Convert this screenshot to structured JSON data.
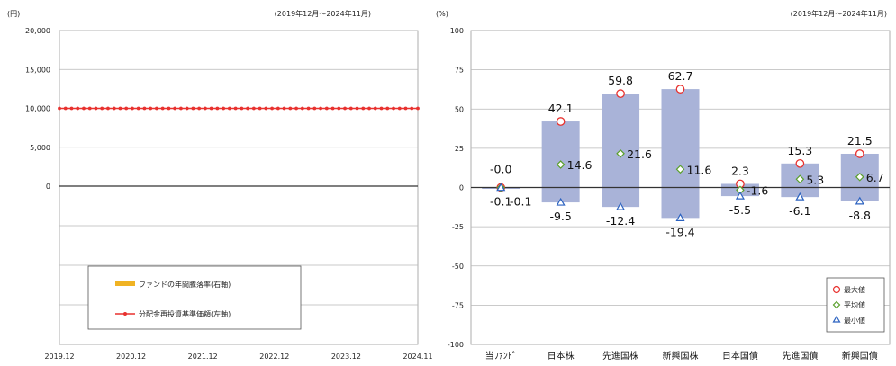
{
  "chart_data": [
    {
      "type": "line",
      "unit_label": "(円)",
      "period": "(2019年12月～2024年11月)",
      "x_tick_labels": [
        "2019.12",
        "2020.12",
        "2021.12",
        "2022.12",
        "2023.12",
        "2024.11"
      ],
      "y_ticks": [
        "20,000",
        "15,000",
        "10,000",
        "5,000",
        "0"
      ],
      "ylim": [
        0,
        20000
      ],
      "grid": true,
      "legend_position": "bottom-left",
      "legend": [
        {
          "label": "ファンドの年間騰落率(右軸)",
          "color": "#f0b323"
        },
        {
          "label": "分配金再投資基準価額(左軸)",
          "color": "#e8312e"
        }
      ],
      "series": [
        {
          "name": "分配金再投資基準価額(左軸)",
          "color": "#e8312e",
          "values": [
            10000,
            10000,
            10000,
            10000,
            10000,
            10000,
            10000,
            10000,
            10000,
            10000,
            10000,
            10000,
            10000,
            10000,
            10000,
            10000,
            10000,
            10000,
            10000,
            10000,
            10000,
            10000,
            10000,
            10000,
            10000,
            10000,
            10000,
            10000,
            10000,
            10000,
            10000,
            10000,
            10000,
            10000,
            10000,
            10000,
            10000,
            10000,
            10000,
            10000,
            10000,
            10000,
            10000,
            10000,
            10000,
            10000,
            10000,
            10000,
            10000,
            10000,
            10000,
            10000,
            10000,
            10000,
            10000,
            10000,
            10000,
            10000,
            10000,
            10000
          ]
        }
      ]
    },
    {
      "type": "bar",
      "unit_label": "(%)",
      "period": "(2019年12月～2024年11月)",
      "y_ticks": [
        "100",
        "75",
        "50",
        "25",
        "0",
        "-25",
        "-50",
        "-75",
        "-100"
      ],
      "ylim": [
        -100,
        100
      ],
      "categories": [
        "当ﾌｧﾝﾄﾞ",
        "日本株",
        "先進国株",
        "新興国株",
        "日本国債",
        "先進国債",
        "新興国債"
      ],
      "max": [
        -0.0,
        42.1,
        59.8,
        62.7,
        2.3,
        15.3,
        21.5
      ],
      "avg": [
        -0.1,
        14.6,
        21.6,
        11.6,
        -1.6,
        5.3,
        6.7
      ],
      "min": [
        -0.1,
        -9.5,
        -12.4,
        -19.4,
        -5.5,
        -6.1,
        -8.8
      ],
      "max_labels": [
        "-0.0",
        "42.1",
        "59.8",
        "62.7",
        "2.3",
        "15.3",
        "21.5"
      ],
      "avg_labels": [
        "-0.1",
        "14.6",
        "21.6",
        "11.6",
        "-1.6",
        "5.3",
        "6.7"
      ],
      "min_labels": [
        "-0.1",
        "-9.5",
        "-12.4",
        "-19.4",
        "-5.5",
        "-6.1",
        "-8.8"
      ],
      "legend_position": "bottom-right",
      "legend": [
        {
          "label": "最大値",
          "color": "#e8312e",
          "marker": "circle"
        },
        {
          "label": "平均値",
          "color": "#5aa02c",
          "marker": "diamond"
        },
        {
          "label": "最小値",
          "color": "#2b62c0",
          "marker": "triangle"
        }
      ],
      "bar_color": "#a9b3d8"
    }
  ]
}
